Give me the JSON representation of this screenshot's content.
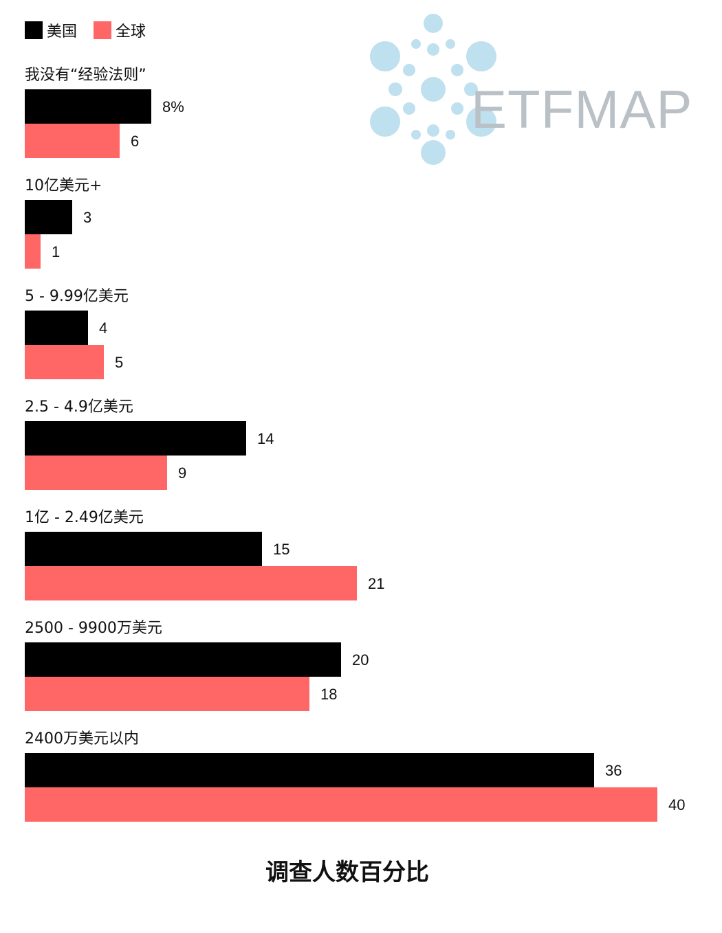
{
  "logo": {
    "text": "ETFMAP"
  },
  "legend": [
    {
      "label": "美国",
      "color": "#000000"
    },
    {
      "label": "全球",
      "color": "#ff6666"
    }
  ],
  "chart_data": {
    "type": "bar",
    "orientation": "horizontal",
    "categories": [
      "我没有“经验法则”",
      "10亿美元+",
      "5 - 9.99亿美元",
      "2.5 - 4.9亿美元",
      "1亿 - 2.49亿美元",
      "2500 - 9900万美元",
      "2400万美元以内"
    ],
    "series": [
      {
        "name": "美国",
        "color": "#000000",
        "values": [
          8,
          3,
          4,
          14,
          15,
          20,
          36
        ],
        "labels": [
          "8%",
          "3",
          "4",
          "14",
          "15",
          "20",
          "36"
        ]
      },
      {
        "name": "全球",
        "color": "#ff6666",
        "values": [
          6,
          1,
          5,
          9,
          21,
          18,
          40
        ],
        "labels": [
          "6",
          "1",
          "5",
          "9",
          "21",
          "18",
          "40"
        ]
      }
    ],
    "xlim": [
      0,
      40
    ],
    "grid": false,
    "legend_position": "top-left",
    "title": "调查人数百分比"
  }
}
